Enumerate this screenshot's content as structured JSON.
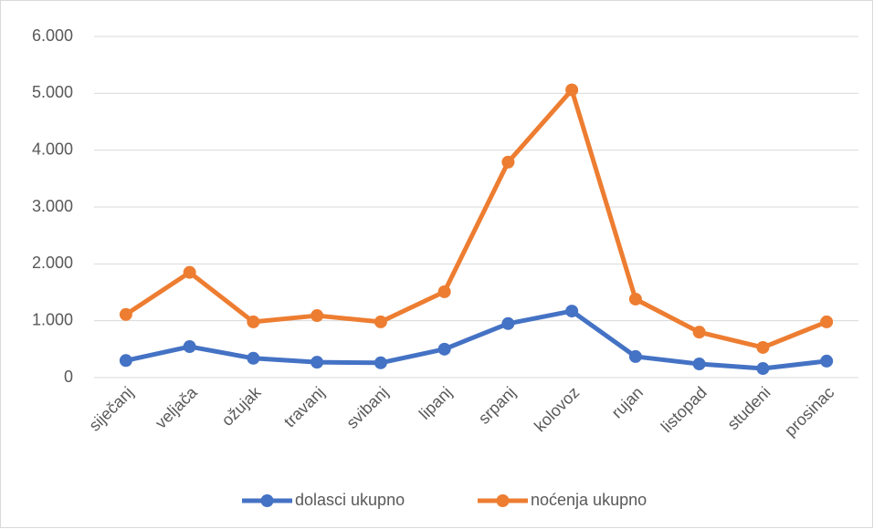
{
  "chart_data": {
    "type": "line",
    "categories": [
      "siječanj",
      "veljača",
      "ožujak",
      "travanj",
      "svibanj",
      "lipanj",
      "srpanj",
      "kolovoz",
      "rujan",
      "listopad",
      "studeni",
      "prosinac"
    ],
    "series": [
      {
        "name": "dolasci ukupno",
        "color": "#4472c4",
        "values": [
          300,
          545,
          340,
          270,
          260,
          500,
          950,
          1170,
          370,
          240,
          160,
          290
        ]
      },
      {
        "name": "noćenja ukupno",
        "color": "#ed7d31",
        "values": [
          1110,
          1850,
          980,
          1090,
          980,
          1510,
          3790,
          5060,
          1380,
          800,
          530,
          980
        ]
      }
    ],
    "ylim": [
      0,
      6000
    ],
    "yticks": [
      0,
      {
        "value": 1000,
        "label": "1.000"
      },
      {
        "value": 2000,
        "label": "2.000"
      },
      {
        "value": 3000,
        "label": "3.000"
      },
      {
        "value": 4000,
        "label": "4.000"
      },
      {
        "value": 5000,
        "label": "5.000"
      },
      {
        "value": 6000,
        "label": "6.000"
      }
    ],
    "grid": true,
    "legend": "bottom"
  }
}
